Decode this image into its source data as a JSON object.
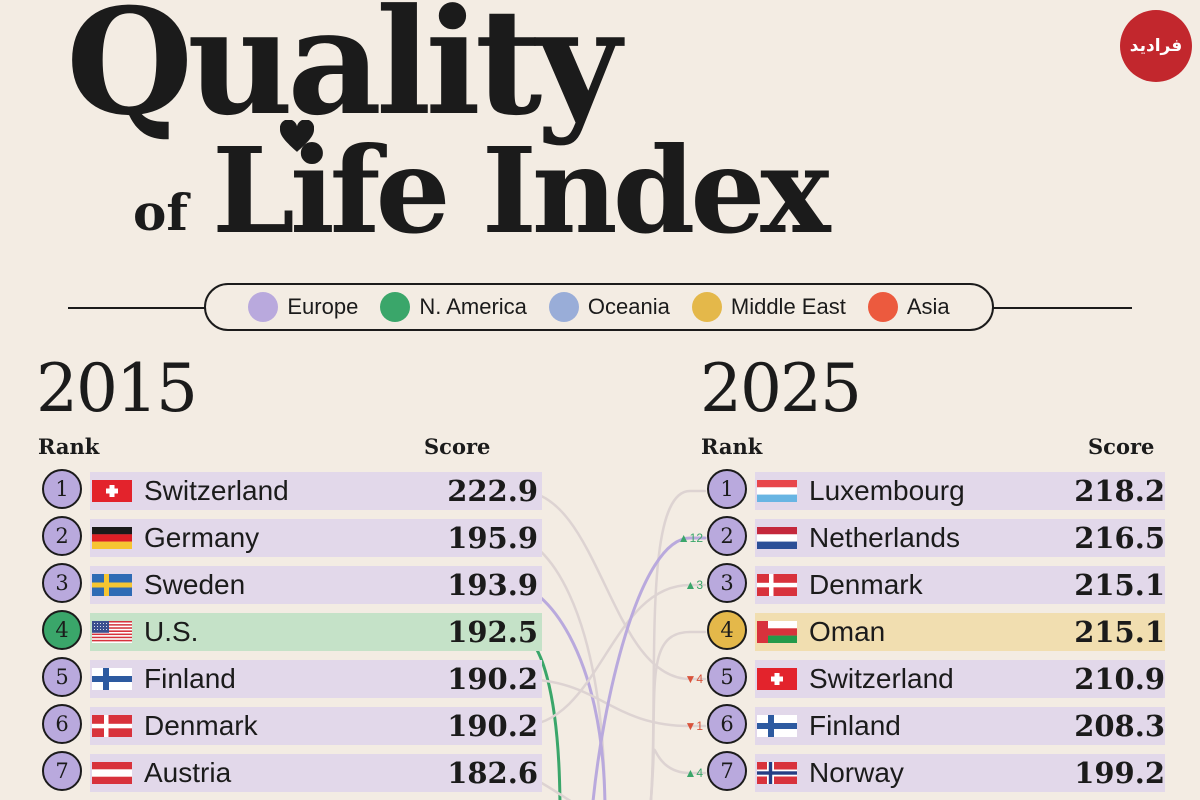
{
  "title": {
    "line1": "Quality",
    "of": "of",
    "line2": "Life Index"
  },
  "logo_text": "فرادید",
  "legend": [
    {
      "label": "Europe",
      "color": "#b9a9dd"
    },
    {
      "label": "N. America",
      "color": "#3aa66a"
    },
    {
      "label": "Oceania",
      "color": "#99add8"
    },
    {
      "label": "Middle East",
      "color": "#e4b84a"
    },
    {
      "label": "Asia",
      "color": "#ec5a3e"
    }
  ],
  "chart_data": {
    "type": "table",
    "title": "Quality of Life Index",
    "left": {
      "year": "2015",
      "rank_header": "Rank",
      "score_header": "Score",
      "rows": [
        {
          "rank": "1",
          "country": "Switzerland",
          "score": "222.9",
          "region": "Europe",
          "flag": "switzerland-flag"
        },
        {
          "rank": "2",
          "country": "Germany",
          "score": "195.9",
          "region": "Europe",
          "flag": "germany-flag"
        },
        {
          "rank": "3",
          "country": "Sweden",
          "score": "193.9",
          "region": "Europe",
          "flag": "sweden-flag"
        },
        {
          "rank": "4",
          "country": "U.S.",
          "score": "192.5",
          "region": "N. America",
          "flag": "us-flag"
        },
        {
          "rank": "5",
          "country": "Finland",
          "score": "190.2",
          "region": "Europe",
          "flag": "finland-flag"
        },
        {
          "rank": "6",
          "country": "Denmark",
          "score": "190.2",
          "region": "Europe",
          "flag": "denmark-flag"
        },
        {
          "rank": "7",
          "country": "Austria",
          "score": "182.6",
          "region": "Europe",
          "flag": "austria-flag"
        }
      ]
    },
    "right": {
      "year": "2025",
      "rank_header": "Rank",
      "score_header": "Score",
      "rows": [
        {
          "rank": "1",
          "country": "Luxembourg",
          "score": "218.2",
          "region": "Europe",
          "flag": "luxembourg-flag",
          "change": ""
        },
        {
          "rank": "2",
          "country": "Netherlands",
          "score": "216.5",
          "region": "Europe",
          "flag": "netherlands-flag",
          "change": "▲12"
        },
        {
          "rank": "3",
          "country": "Denmark",
          "score": "215.1",
          "region": "Europe",
          "flag": "denmark-flag",
          "change": "▲3"
        },
        {
          "rank": "4",
          "country": "Oman",
          "score": "215.1",
          "region": "Middle East",
          "flag": "oman-flag",
          "change": ""
        },
        {
          "rank": "5",
          "country": "Switzerland",
          "score": "210.9",
          "region": "Europe",
          "flag": "switzerland-flag",
          "change": "▼4"
        },
        {
          "rank": "6",
          "country": "Finland",
          "score": "208.3",
          "region": "Europe",
          "flag": "finland-flag",
          "change": "▼1"
        },
        {
          "rank": "7",
          "country": "Norway",
          "score": "199.2",
          "region": "Europe",
          "flag": "norway-flag",
          "change": "▲4"
        }
      ]
    }
  },
  "colors": {
    "europe_bar": "#e2d8ea",
    "europe_circle": "#b9a9dd",
    "namerica_bar": "#c5e2c8",
    "namerica_circle": "#3aa66a",
    "middleeast_bar": "#f1deb0",
    "middleeast_circle": "#e4b84a",
    "up": "#3aa66a",
    "down": "#d9533b",
    "faint_line": "#ddd3d2"
  }
}
